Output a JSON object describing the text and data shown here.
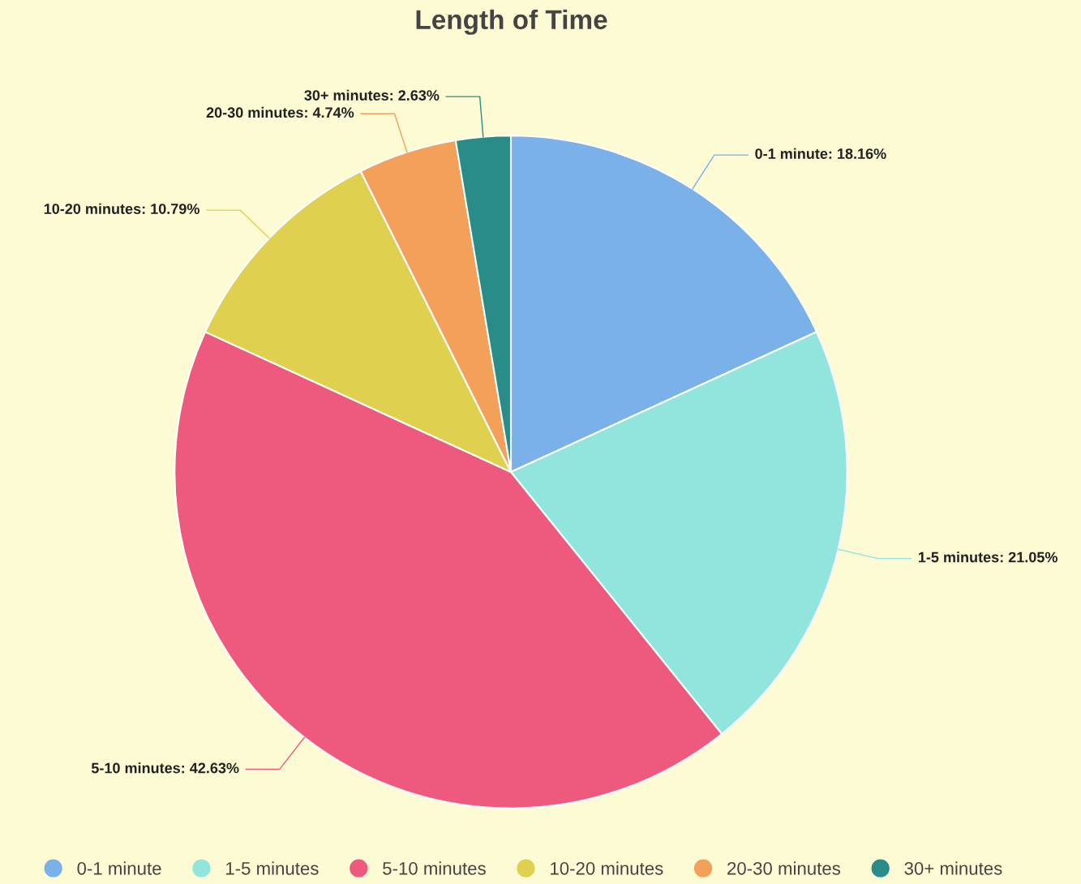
{
  "chart_data": {
    "type": "pie",
    "title": "Length of Time",
    "categories": [
      "0-1 minute",
      "1-5 minutes",
      "5-10 minutes",
      "10-20 minutes",
      "20-30 minutes",
      "30+ minutes"
    ],
    "values": [
      18.16,
      21.05,
      42.63,
      10.79,
      4.74,
      2.63
    ],
    "colors": [
      "#7ab1e8",
      "#91e5dc",
      "#ee5a7e",
      "#e0d050",
      "#f2a05a",
      "#2a8c88"
    ],
    "value_labels": [
      "0-1 minute: 18.16%",
      "1-5 minutes: 21.05%",
      "5-10 minutes: 42.63%",
      "10-20 minutes: 10.79%",
      "20-30 minutes: 4.74%",
      "30+ minutes: 2.63%"
    ],
    "legend": "bottom"
  }
}
